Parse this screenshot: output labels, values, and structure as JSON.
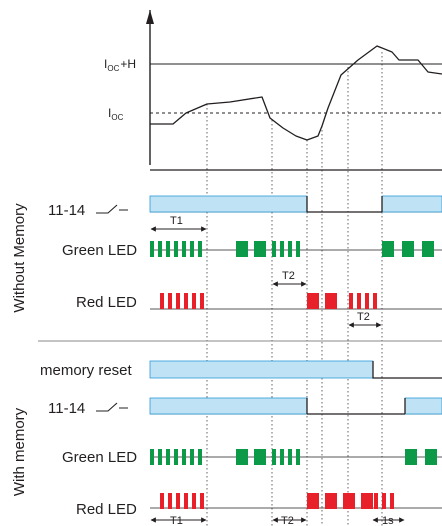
{
  "colors": {
    "line": "#231f20",
    "relay_fill": "#bfe3f5",
    "relay_stroke": "#2b9ad7",
    "green_led": "#0c9a48",
    "red_led": "#e8202a",
    "divider": "#888888"
  },
  "current_graph": {
    "label_upper_main": "I",
    "label_upper_sub": "OC",
    "label_upper_suffix": "+H",
    "label_lower_main": "I",
    "label_lower_sub": "OC"
  },
  "group_without": {
    "title": "Without Memory",
    "relay_label": "11-14",
    "green_label": "Green LED",
    "red_label": "Red LED",
    "t1_label": "T1",
    "t2_green_label": "T2",
    "t2_red_label": "T2"
  },
  "group_with": {
    "title": "With memory",
    "reset_label": "memory reset",
    "relay_label": "11-14",
    "green_label": "Green LED",
    "red_label": "Red LED",
    "t1_label": "T1",
    "t2_label": "T2",
    "s1_label": "1s"
  }
}
